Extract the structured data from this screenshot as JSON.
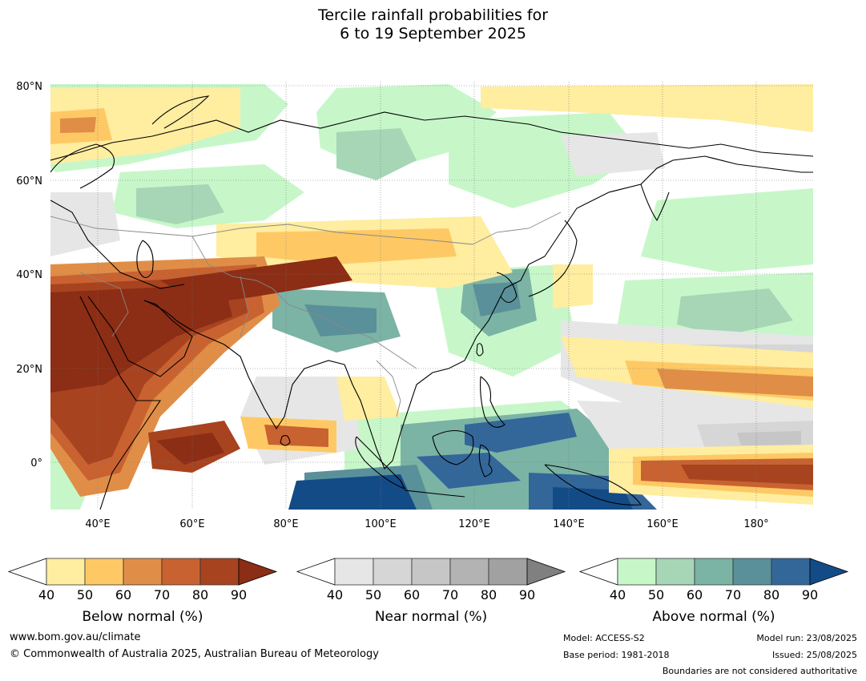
{
  "title": {
    "line1": "Tercile rainfall probabilities for",
    "line2": "6 to 19 September 2025"
  },
  "map": {
    "lat_labels": [
      "80°N",
      "60°N",
      "40°N",
      "20°N",
      "0°"
    ],
    "lon_labels": [
      "40°E",
      "60°E",
      "80°E",
      "100°E",
      "120°E",
      "140°E",
      "160°E",
      "180°"
    ]
  },
  "colorbars": [
    {
      "title": "Below normal (%)",
      "ticks": [
        "40",
        "50",
        "60",
        "70",
        "80",
        "90"
      ],
      "colors": [
        "#ffeda0",
        "#fec965",
        "#e08e47",
        "#c96231",
        "#a8431f",
        "#8c2d15"
      ]
    },
    {
      "title": "Near normal (%)",
      "ticks": [
        "40",
        "50",
        "60",
        "70",
        "80",
        "90"
      ],
      "colors": [
        "#e6e6e6",
        "#d6d6d6",
        "#c6c6c6",
        "#b3b3b3",
        "#a1a1a1",
        "#808080"
      ]
    },
    {
      "title": "Above normal (%)",
      "ticks": [
        "40",
        "50",
        "60",
        "70",
        "80",
        "90"
      ],
      "colors": [
        "#c7f7c9",
        "#a6d6b6",
        "#7bb3a5",
        "#5a9099",
        "#336699",
        "#134b87"
      ]
    }
  ],
  "footer": {
    "website": "www.bom.gov.au/climate",
    "copyright": "© Commonwealth of Australia 2025, Australian Bureau of Meteorology",
    "model": "Model: ACCESS-S2",
    "base_period": "Base period: 1981-2018",
    "model_run": "Model run: 23/08/2025",
    "issued": "Issued: 25/08/2025",
    "disclaimer": "Boundaries are not considered authoritative"
  }
}
